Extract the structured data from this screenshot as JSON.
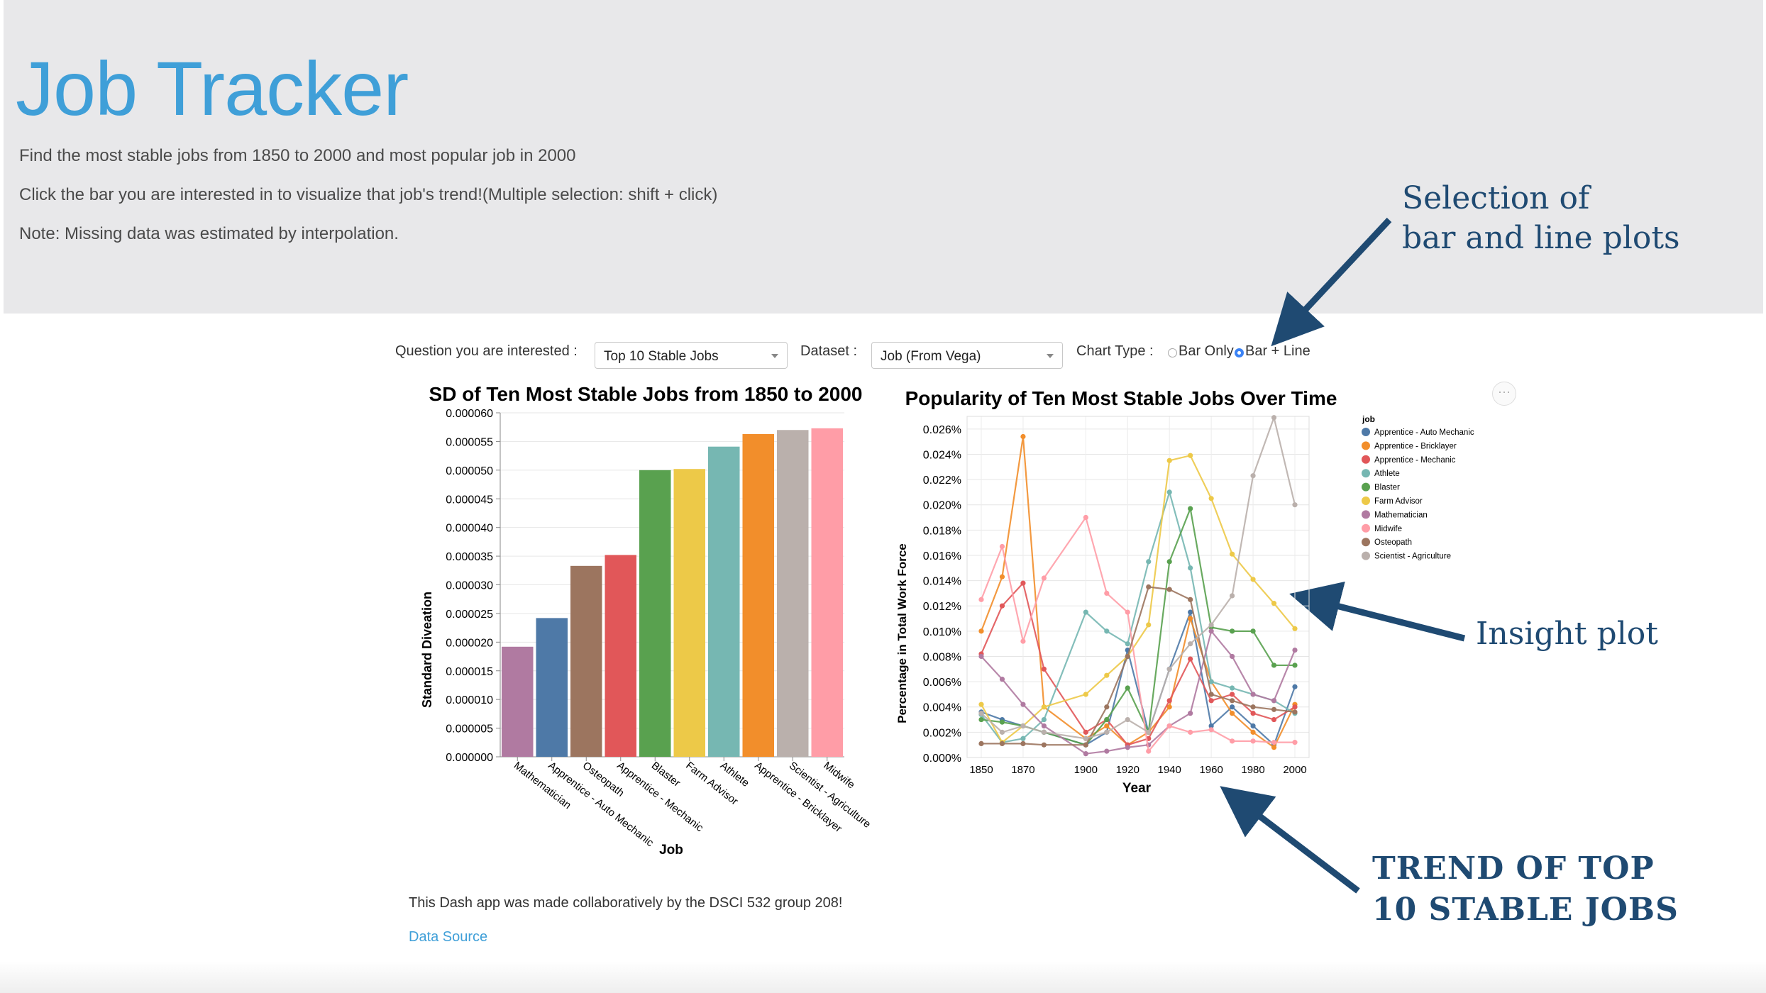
{
  "header": {
    "title": "Job Tracker",
    "line1": "Find the most stable jobs from 1850 to 2000 and most popular job in 2000",
    "line2": "Click the bar you are interested in to visualize that job's trend!(Multiple selection: shift + click)",
    "line3": "Note: Missing data was estimated by interpolation."
  },
  "annotations": {
    "selection_line1": "Selection of",
    "selection_line2": "bar and line plots",
    "insight": "Insight plot",
    "trend_line1": "TREND OF TOP",
    "trend_line2": "10 STABLE JOBS"
  },
  "controls": {
    "question_label": "Question you are interested :",
    "question_value": "Top 10 Stable Jobs",
    "dataset_label": "Dataset :",
    "dataset_value": "Job (From Vega)",
    "chart_type_label": "Chart Type :",
    "option_bar_only": "Bar Only",
    "option_bar_line": "Bar + Line",
    "selected": "Bar + Line"
  },
  "more_button": "···",
  "footer": {
    "credit": "This Dash app was made collaboratively by the DSCI 532 group 208!",
    "link": "Data Source"
  },
  "chart_data": [
    {
      "type": "bar",
      "title": "SD of Ten Most Stable Jobs from 1850 to 2000",
      "xlabel": "Job",
      "ylabel": "Standard Diveation",
      "ylim": [
        0,
        6e-05
      ],
      "yticks": [
        "0.000000",
        "0.000005",
        "0.000010",
        "0.000015",
        "0.000020",
        "0.000025",
        "0.000030",
        "0.000035",
        "0.000040",
        "0.000045",
        "0.000050",
        "0.000055",
        "0.000060"
      ],
      "categories": [
        "Mathematician",
        "Apprentice - Auto Mechanic",
        "Osteopath",
        "Apprentice - Mechanic",
        "Blaster",
        "Farm Advisor",
        "Athlete",
        "Apprentice - Bricklayer",
        "Scientist - Agriculture",
        "Midwife"
      ],
      "values": [
        1.92e-05,
        2.42e-05,
        3.33e-05,
        3.52e-05,
        5e-05,
        5.02e-05,
        5.41e-05,
        5.63e-05,
        5.7e-05,
        5.73e-05
      ],
      "colors": [
        "#b07aa1",
        "#4e79a7",
        "#9c755f",
        "#e15759",
        "#59a14f",
        "#edc948",
        "#76b7b2",
        "#f28e2b",
        "#bab0ac",
        "#ff9da7"
      ],
      "grid": true
    },
    {
      "type": "line",
      "title": "Popularity of Ten Most Stable Jobs Over Time",
      "xlabel": "Year",
      "ylabel": "Percentage in Total Work Force",
      "ylim": [
        0,
        0.027
      ],
      "xlim": [
        1850,
        2000
      ],
      "yticks": [
        "0.000%",
        "0.002%",
        "0.004%",
        "0.006%",
        "0.008%",
        "0.010%",
        "0.012%",
        "0.014%",
        "0.016%",
        "0.018%",
        "0.020%",
        "0.022%",
        "0.024%",
        "0.026%"
      ],
      "xticks": [
        "1850",
        "1870",
        "1900",
        "1920",
        "1940",
        "1960",
        "1980",
        "2000"
      ],
      "legend_title": "job",
      "legend_position": "right",
      "grid": true,
      "x": [
        1850,
        1860,
        1870,
        1880,
        1900,
        1910,
        1920,
        1930,
        1940,
        1950,
        1960,
        1970,
        1980,
        1990,
        2000
      ],
      "series": [
        {
          "name": "Apprentice - Auto Mechanic",
          "color": "#4e79a7",
          "values": [
            0.0036,
            0.003,
            0.0025,
            0.002,
            0.001,
            0.002,
            0.0085,
            0.002,
            0.007,
            0.0115,
            0.0025,
            0.004,
            0.0025,
            0.001,
            0.0056
          ]
        },
        {
          "name": "Apprentice - Bricklayer",
          "color": "#f28e2b",
          "values": [
            0.01,
            0.0143,
            0.0254,
            0.004,
            0.0015,
            0.0025,
            0.001,
            0.002,
            0.004,
            0.011,
            0.006,
            0.0035,
            0.002,
            0.0008,
            0.0042
          ]
        },
        {
          "name": "Apprentice - Mechanic",
          "color": "#e15759",
          "values": [
            0.0082,
            0.012,
            0.0138,
            0.007,
            0.002,
            0.003,
            0.001,
            0.0015,
            0.0045,
            0.0078,
            0.0045,
            0.005,
            0.0035,
            0.003,
            0.004
          ]
        },
        {
          "name": "Athlete",
          "color": "#76b7b2",
          "values": [
            0.0034,
            0.0012,
            0.0015,
            0.003,
            0.0115,
            0.01,
            0.009,
            0.0155,
            0.021,
            0.015,
            0.006,
            0.0055,
            0.005,
            0.0045,
            0.0035
          ]
        },
        {
          "name": "Blaster",
          "color": "#59a14f",
          "values": [
            0.003,
            0.0028,
            0.0025,
            0.002,
            0.001,
            0.003,
            0.0055,
            0.002,
            0.0155,
            0.0197,
            0.0103,
            0.01,
            0.01,
            0.0073,
            0.0073
          ]
        },
        {
          "name": "Farm Advisor",
          "color": "#edc948",
          "values": [
            0.0042,
            0.0012,
            0.0025,
            0.004,
            0.005,
            0.0065,
            0.008,
            0.0105,
            0.0235,
            0.0239,
            0.0205,
            0.0161,
            0.0141,
            0.0122,
            0.0102
          ]
        },
        {
          "name": "Mathematician",
          "color": "#b07aa1",
          "values": [
            0.008,
            0.0062,
            0.0042,
            0.0025,
            0.0003,
            0.0005,
            0.0008,
            0.001,
            0.0025,
            0.0035,
            0.01,
            0.008,
            0.005,
            0.0045,
            0.0085
          ]
        },
        {
          "name": "Midwife",
          "color": "#ff9da7",
          "values": [
            0.0125,
            0.0167,
            0.0092,
            0.0142,
            0.019,
            0.013,
            0.0115,
            0.0005,
            0.0025,
            0.002,
            0.0022,
            0.0013,
            0.0013,
            0.0012,
            0.0012
          ]
        },
        {
          "name": "Osteopath",
          "color": "#9c755f",
          "values": [
            0.0011,
            0.0011,
            0.0011,
            0.001,
            0.001,
            0.004,
            0.008,
            0.0135,
            0.0133,
            0.0125,
            0.005,
            0.0045,
            0.004,
            0.0038,
            0.0036
          ]
        },
        {
          "name": "Scientist - Agriculture",
          "color": "#bab0ac",
          "values": [
            0.0035,
            0.002,
            0.0025,
            0.002,
            0.0015,
            0.002,
            0.003,
            0.002,
            0.007,
            0.009,
            0.0105,
            0.0128,
            0.0223,
            0.0269,
            0.02
          ]
        }
      ]
    }
  ]
}
